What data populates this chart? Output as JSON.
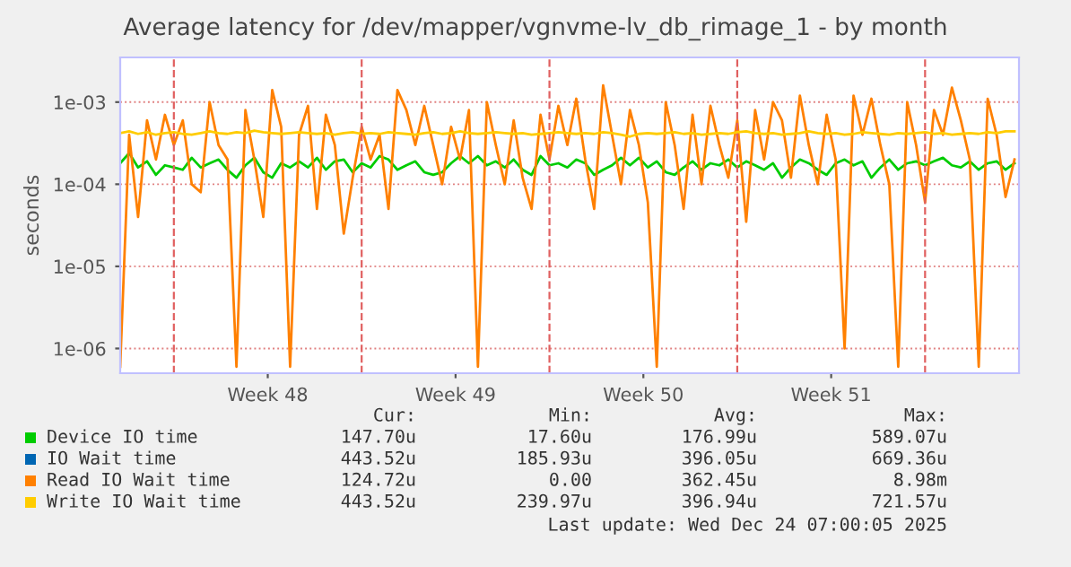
{
  "chart_data": {
    "type": "line",
    "title": "Average latency for /dev/mapper/vgnvme-lv_db_rimage_1 - by month",
    "ylabel": "seconds",
    "log": "y",
    "grid": "y",
    "legend": "bottom",
    "xlim": [
      "2025-11-22T00:00",
      "2025-12-25T12:00"
    ],
    "xticks": [
      {
        "value": "2025-11-27T12:00",
        "label": "Week 48"
      },
      {
        "value": "2025-12-04T12:00",
        "label": "Week 49"
      },
      {
        "value": "2025-12-11T12:00",
        "label": "Week 50"
      },
      {
        "value": "2025-12-18T12:00",
        "label": "Week 51"
      }
    ],
    "ylim": [
      5e-07,
      0.0035
    ],
    "yticks": [
      {
        "value": 1e-06,
        "label": "1e-06"
      },
      {
        "value": 1e-05,
        "label": "1e-05"
      },
      {
        "value": 0.0001,
        "label": "1e-04"
      },
      {
        "value": 0.001,
        "label": "1e-03"
      }
    ],
    "ref_lines": [
      {
        "axis": "x",
        "value": "2025-11-24T00:00",
        "label": null,
        "color": "#e06060",
        "line_style": "dashed"
      },
      {
        "axis": "x",
        "value": "2025-12-01T00:00",
        "label": null,
        "color": "#e06060",
        "line_style": "dashed"
      },
      {
        "axis": "x",
        "value": "2025-12-08T00:00",
        "label": null,
        "color": "#e06060",
        "line_style": "dashed"
      },
      {
        "axis": "x",
        "value": "2025-12-15T00:00",
        "label": null,
        "color": "#e06060",
        "line_style": "dashed"
      },
      {
        "axis": "x",
        "value": "2025-12-22T00:00",
        "label": null,
        "color": "#e06060",
        "line_style": "dashed"
      }
    ],
    "x": [
      "2025-11-22T00:00",
      "2025-11-22T08:00",
      "2025-11-22T16:00",
      "2025-11-23T00:00",
      "2025-11-23T08:00",
      "2025-11-23T16:00",
      "2025-11-24T00:00",
      "2025-11-24T08:00",
      "2025-11-24T16:00",
      "2025-11-25T00:00",
      "2025-11-25T08:00",
      "2025-11-25T16:00",
      "2025-11-26T00:00",
      "2025-11-26T08:00",
      "2025-11-26T16:00",
      "2025-11-27T00:00",
      "2025-11-27T08:00",
      "2025-11-27T16:00",
      "2025-11-28T00:00",
      "2025-11-28T08:00",
      "2025-11-28T16:00",
      "2025-11-29T00:00",
      "2025-11-29T08:00",
      "2025-11-29T16:00",
      "2025-11-30T00:00",
      "2025-11-30T08:00",
      "2025-11-30T16:00",
      "2025-12-01T00:00",
      "2025-12-01T08:00",
      "2025-12-01T16:00",
      "2025-12-02T00:00",
      "2025-12-02T08:00",
      "2025-12-02T16:00",
      "2025-12-03T00:00",
      "2025-12-03T08:00",
      "2025-12-03T16:00",
      "2025-12-04T00:00",
      "2025-12-04T08:00",
      "2025-12-04T16:00",
      "2025-12-05T00:00",
      "2025-12-05T08:00",
      "2025-12-05T16:00",
      "2025-12-06T00:00",
      "2025-12-06T08:00",
      "2025-12-06T16:00",
      "2025-12-07T00:00",
      "2025-12-07T08:00",
      "2025-12-07T16:00",
      "2025-12-08T00:00",
      "2025-12-08T08:00",
      "2025-12-08T16:00",
      "2025-12-09T00:00",
      "2025-12-09T08:00",
      "2025-12-09T16:00",
      "2025-12-10T00:00",
      "2025-12-10T08:00",
      "2025-12-10T16:00",
      "2025-12-11T00:00",
      "2025-12-11T08:00",
      "2025-12-11T16:00",
      "2025-12-12T00:00",
      "2025-12-12T08:00",
      "2025-12-12T16:00",
      "2025-12-13T00:00",
      "2025-12-13T08:00",
      "2025-12-13T16:00",
      "2025-12-14T00:00",
      "2025-12-14T08:00",
      "2025-12-14T16:00",
      "2025-12-15T00:00",
      "2025-12-15T08:00",
      "2025-12-15T16:00",
      "2025-12-16T00:00",
      "2025-12-16T08:00",
      "2025-12-16T16:00",
      "2025-12-17T00:00",
      "2025-12-17T08:00",
      "2025-12-17T16:00",
      "2025-12-18T00:00",
      "2025-12-18T08:00",
      "2025-12-18T16:00",
      "2025-12-19T00:00",
      "2025-12-19T08:00",
      "2025-12-19T16:00",
      "2025-12-20T00:00",
      "2025-12-20T08:00",
      "2025-12-20T16:00",
      "2025-12-21T00:00",
      "2025-12-21T08:00",
      "2025-12-21T16:00",
      "2025-12-22T00:00",
      "2025-12-22T08:00",
      "2025-12-22T16:00",
      "2025-12-23T00:00",
      "2025-12-23T08:00",
      "2025-12-23T16:00",
      "2025-12-24T00:00",
      "2025-12-24T08:00",
      "2025-12-24T16:00",
      "2025-12-25T00:00",
      "2025-12-25T08:00"
    ],
    "series": [
      {
        "name": "Device IO time",
        "color": "#00cc00",
        "values": [
          0.00018,
          0.00024,
          0.00016,
          0.00019,
          0.00013,
          0.00017,
          0.00016,
          0.00015,
          0.00021,
          0.00016,
          0.00018,
          0.0002,
          0.00015,
          0.00012,
          0.00017,
          0.00021,
          0.00014,
          0.00012,
          0.00018,
          0.00016,
          0.00019,
          0.00016,
          0.00021,
          0.00015,
          0.00019,
          0.0002,
          0.00014,
          0.00018,
          0.00016,
          0.00022,
          0.0002,
          0.00015,
          0.00017,
          0.00019,
          0.00014,
          0.00013,
          0.00014,
          0.00018,
          0.00022,
          0.00018,
          0.00022,
          0.00017,
          0.00019,
          0.00016,
          0.0002,
          0.00015,
          0.00013,
          0.00022,
          0.00017,
          0.00018,
          0.00016,
          0.0002,
          0.00018,
          0.00013,
          0.00015,
          0.00017,
          0.00021,
          0.00017,
          0.00021,
          0.00016,
          0.00019,
          0.00014,
          0.00013,
          0.00016,
          0.00019,
          0.00015,
          0.00018,
          0.00017,
          0.0002,
          0.00016,
          0.00019,
          0.00017,
          0.00015,
          0.00018,
          0.00012,
          0.00016,
          0.0002,
          0.00018,
          0.00015,
          0.00013,
          0.00018,
          0.0002,
          0.00017,
          0.00019,
          0.00012,
          0.00016,
          0.0002,
          0.00015,
          0.00018,
          0.00019,
          0.00017,
          0.00019,
          0.00021,
          0.00017,
          0.00016,
          0.00019,
          0.00015,
          0.00018,
          0.00019,
          0.00015,
          0.00018
        ]
      },
      {
        "name": "IO Wait time",
        "color": "#0066b3",
        "values": [
          null,
          null,
          null,
          null,
          null,
          null,
          null,
          null,
          null,
          null,
          null,
          null,
          null,
          null,
          null,
          null,
          null,
          null,
          null,
          null,
          null,
          null,
          null,
          null,
          null,
          null,
          null,
          null,
          null,
          null,
          null,
          null,
          null,
          null,
          null,
          null,
          null,
          null,
          null,
          null,
          null,
          null,
          null,
          null,
          null,
          null,
          null,
          null,
          null,
          null,
          null,
          null,
          null,
          null,
          null,
          null,
          null,
          null,
          null,
          null,
          null,
          null,
          null,
          null,
          null,
          null,
          null,
          null,
          null,
          null,
          null,
          null,
          null,
          null,
          null,
          null,
          null,
          null,
          null,
          null,
          null,
          null,
          null,
          null,
          null,
          null,
          null,
          null,
          null,
          null,
          null,
          null,
          null,
          null,
          null,
          null,
          null,
          null,
          null,
          null,
          null
        ]
      },
      {
        "name": "Read IO Wait time",
        "color": "#ff8000",
        "values": [
          6e-07,
          0.0004,
          4e-05,
          0.0006,
          0.0002,
          0.0007,
          0.0003,
          0.0006,
          0.0001,
          8e-05,
          0.001,
          0.0003,
          0.0002,
          6e-07,
          0.0008,
          0.0002,
          4e-05,
          0.0014,
          0.0005,
          6e-07,
          0.0004,
          0.0009,
          5e-05,
          0.0007,
          0.0003,
          2.5e-05,
          0.00012,
          0.0005,
          0.0002,
          0.0004,
          5e-05,
          0.0014,
          0.0008,
          0.0003,
          0.0009,
          0.0003,
          0.0001,
          0.0005,
          0.0002,
          0.0008,
          6e-07,
          0.001,
          0.0003,
          0.0001,
          0.0006,
          0.00012,
          5e-05,
          0.0007,
          0.0002,
          0.0009,
          0.0003,
          0.0011,
          0.0002,
          5e-05,
          0.0016,
          0.0004,
          0.0001,
          0.0008,
          0.0003,
          6e-05,
          6e-07,
          0.001,
          0.0003,
          5e-05,
          0.0007,
          0.0001,
          0.0009,
          0.0003,
          0.00012,
          0.0006,
          3.5e-05,
          0.0008,
          0.0002,
          0.001,
          0.0006,
          0.00012,
          0.0012,
          0.0003,
          0.0001,
          0.0007,
          0.0002,
          1e-06,
          0.0012,
          0.0004,
          0.0011,
          0.0003,
          0.0001,
          6e-07,
          0.001,
          0.0003,
          6e-05,
          0.0008,
          0.0004,
          0.0015,
          0.0006,
          0.0002,
          6e-07,
          0.0011,
          0.0004,
          7e-05,
          0.0002
        ]
      },
      {
        "name": "Write IO Wait time",
        "color": "#ffcc00",
        "values": [
          0.00042,
          0.00044,
          0.00041,
          0.00043,
          0.0004,
          0.00042,
          0.00043,
          0.00041,
          0.0004,
          0.00042,
          0.00044,
          0.00042,
          0.00041,
          0.00043,
          0.00042,
          0.00045,
          0.00043,
          0.00042,
          0.00041,
          0.00042,
          0.00043,
          0.00042,
          0.00041,
          0.00042,
          0.0004,
          0.00042,
          0.00043,
          0.00041,
          0.00042,
          0.00041,
          0.00043,
          0.00042,
          0.00041,
          0.0004,
          0.00042,
          0.00043,
          0.00041,
          0.00042,
          0.00044,
          0.00042,
          0.00041,
          0.00042,
          0.00043,
          0.00042,
          0.00041,
          0.00042,
          0.0004,
          0.00041,
          0.00042,
          0.00043,
          0.00042,
          0.00041,
          0.00042,
          0.00041,
          0.00043,
          0.00042,
          0.0004,
          0.00038,
          0.00041,
          0.00042,
          0.00041,
          0.00042,
          0.00043,
          0.00041,
          0.00042,
          0.0004,
          0.00041,
          0.00042,
          0.00041,
          0.00043,
          0.00044,
          0.00042,
          0.00041,
          0.00042,
          0.0004,
          0.00041,
          0.00042,
          0.00044,
          0.00042,
          0.00041,
          0.00042,
          0.0004,
          0.00041,
          0.00043,
          0.00042,
          0.00041,
          0.0004,
          0.00042,
          0.00041,
          0.00042,
          0.00043,
          0.00041,
          0.00042,
          0.0004,
          0.00041,
          0.00042,
          0.00041,
          0.00043,
          0.00042,
          0.00044,
          0.00044
        ]
      }
    ],
    "annotations": [
      "Cur:",
      "Min:",
      "Avg:",
      "Max:",
      "147.70u",
      "17.60u",
      "176.99u",
      "589.07u",
      "443.52u",
      "185.93u",
      "396.05u",
      "669.36u",
      "124.72u",
      "0.00",
      "362.45u",
      "8.98m",
      "443.52u",
      "239.97u",
      "396.94u",
      "721.57u",
      "Last update: Wed Dec 24 07:00:05 2025"
    ]
  }
}
